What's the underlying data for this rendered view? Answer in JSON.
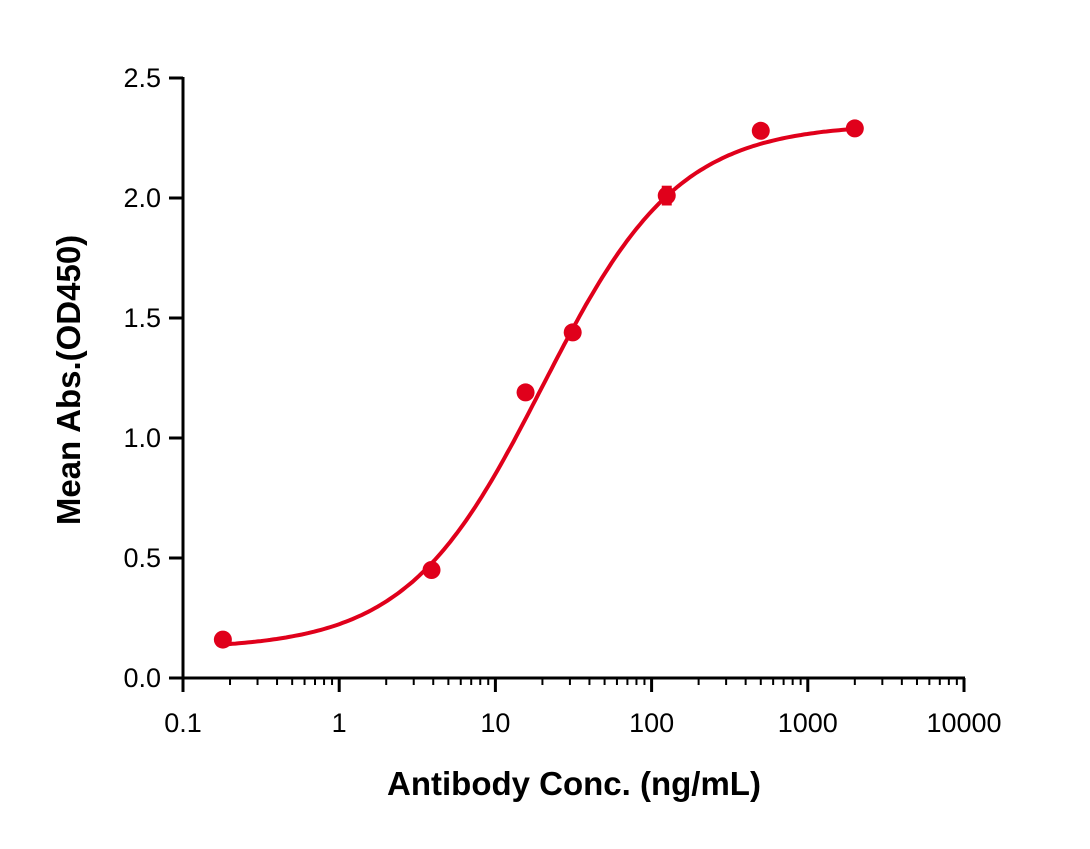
{
  "chart_data": {
    "type": "scatter",
    "title": "",
    "xlabel": "Antibody Conc. (ng/mL)",
    "ylabel": "Mean Abs.(OD450)",
    "xscale": "log",
    "xlim": [
      0.1,
      10000
    ],
    "ylim": [
      0,
      2.5
    ],
    "xticks": [
      0.1,
      1,
      10,
      100,
      1000,
      10000
    ],
    "xtick_labels": [
      "0.1",
      "1",
      "10",
      "100",
      "1000",
      "10000"
    ],
    "yticks": [
      0,
      0.5,
      1.0,
      1.5,
      2.0,
      2.5
    ],
    "ytick_labels": [
      "0.0",
      "0.5",
      "1.0",
      "1.5",
      "2.0",
      "2.5"
    ],
    "grid": false,
    "color": "#e0001b",
    "series": [
      {
        "x": [
          0.18,
          3.9,
          15.6,
          31.25,
          125,
          500,
          2000
        ],
        "y": [
          0.16,
          0.45,
          1.19,
          1.44,
          2.01,
          2.28,
          2.29
        ],
        "error": [
          0.01,
          0.01,
          0.01,
          0.01,
          0.035,
          0.01,
          0.01
        ]
      }
    ],
    "fit": {
      "model": "4PL",
      "bottom": 0.12,
      "top": 2.31,
      "ec50": 20,
      "hill": 1.0
    }
  }
}
